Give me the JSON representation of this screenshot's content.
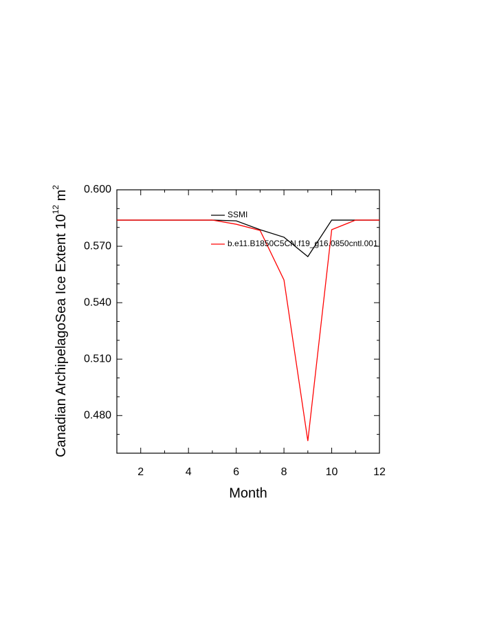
{
  "chart_data": {
    "type": "line",
    "x_label": "Month",
    "y_label": "Canadian ArchipelagoSea Ice Extent 10",
    "y_label_exponent": "12",
    "y_label_unit": " m",
    "y_label_unit_exponent": "2",
    "x": [
      1,
      2,
      3,
      4,
      5,
      6,
      7,
      8,
      9,
      10,
      11,
      12
    ],
    "series": [
      {
        "name": "SSMI",
        "color": "#000000",
        "values": [
          0.5839,
          0.5839,
          0.5839,
          0.5839,
          0.5839,
          0.5835,
          0.5788,
          0.5748,
          0.5645,
          0.5839,
          0.5839,
          0.5839
        ]
      },
      {
        "name": "b.e11.B1850C5CN.f19_g16.0850cntl.001",
        "color": "#ff0000",
        "values": [
          0.5839,
          0.5839,
          0.5839,
          0.5839,
          0.5839,
          0.5817,
          0.5784,
          0.5521,
          0.4665,
          0.5788,
          0.5839,
          0.5839
        ]
      }
    ],
    "xlim": [
      1,
      12
    ],
    "xticks": [
      2,
      4,
      6,
      8,
      10,
      12
    ],
    "xminor_ticks": [
      1,
      3,
      5,
      7,
      9,
      11
    ],
    "ylim": [
      0.46,
      0.6
    ],
    "yticks": [
      {
        "value": 0.48,
        "label": "0.480"
      },
      {
        "value": 0.51,
        "label": "0.510"
      },
      {
        "value": 0.54,
        "label": "0.540"
      },
      {
        "value": 0.57,
        "label": "0.570"
      },
      {
        "value": 0.6,
        "label": "0.600"
      }
    ],
    "yminor_ticks": [
      0.47,
      0.49,
      0.5,
      0.52,
      0.53,
      0.55,
      0.56,
      0.58,
      0.59
    ],
    "grid": false
  }
}
